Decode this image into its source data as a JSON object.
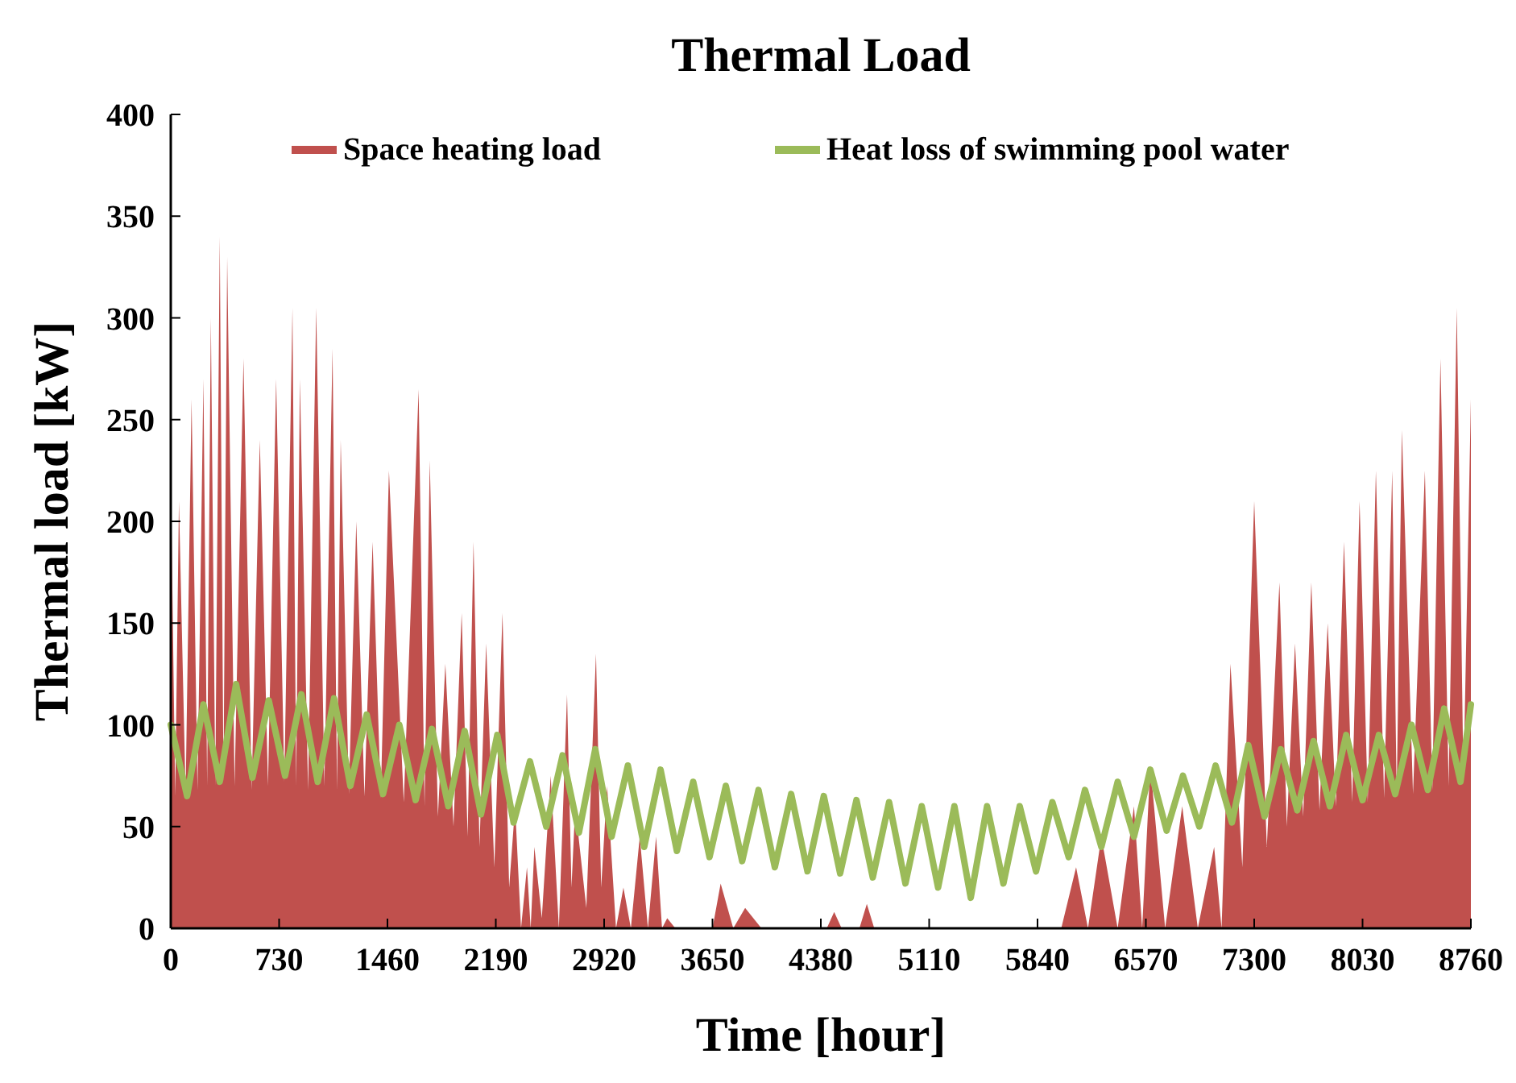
{
  "chart_data": {
    "type": "line",
    "title": "Thermal Load",
    "xlabel": "Time [hour]",
    "ylabel": "Thermal load [kW]",
    "xlim": [
      0,
      8760
    ],
    "xticks": [
      0,
      730,
      1460,
      2190,
      2920,
      3650,
      4380,
      5110,
      5840,
      6570,
      7300,
      8030,
      8760
    ],
    "ylim": [
      0,
      400
    ],
    "yticks": [
      0,
      50,
      100,
      150,
      200,
      250,
      300,
      350,
      400
    ],
    "grid": false,
    "legend": "top",
    "marker": "none",
    "line_style": "solid",
    "series": [
      {
        "name": "Space heating load",
        "type": "area",
        "color": "#c0504d",
        "x": [
          0,
          30,
          55,
          100,
          140,
          180,
          220,
          245,
          270,
          300,
          330,
          355,
          380,
          430,
          490,
          545,
          600,
          655,
          710,
          765,
          820,
          845,
          870,
          925,
          980,
          1035,
          1090,
          1120,
          1145,
          1200,
          1250,
          1305,
          1360,
          1415,
          1470,
          1570,
          1670,
          1710,
          1745,
          1800,
          1850,
          1905,
          1960,
          2000,
          2040,
          2080,
          2125,
          2180,
          2235,
          2280,
          2320,
          2360,
          2400,
          2425,
          2450,
          2500,
          2560,
          2615,
          2670,
          2700,
          2725,
          2800,
          2865,
          2900,
          2940,
          3000,
          3050,
          3100,
          3160,
          3215,
          3270,
          3310,
          3345,
          3400,
          3650,
          3705,
          3790,
          3870,
          3980,
          4420,
          4470,
          4520,
          4640,
          4690,
          4740,
          6000,
          6100,
          6180,
          6270,
          6380,
          6490,
          6545,
          6600,
          6700,
          6815,
          6920,
          7030,
          7080,
          7140,
          7220,
          7300,
          7385,
          7470,
          7520,
          7575,
          7630,
          7685,
          7740,
          7795,
          7850,
          7905,
          7960,
          8010,
          8065,
          8120,
          8175,
          8230,
          8260,
          8295,
          8370,
          8450,
          8500,
          8555,
          8610,
          8665,
          8710,
          8760
        ],
        "values": [
          225,
          65,
          210,
          66,
          260,
          68,
          270,
          70,
          300,
          70,
          340,
          72,
          330,
          70,
          280,
          68,
          240,
          70,
          270,
          72,
          305,
          70,
          270,
          68,
          305,
          70,
          285,
          68,
          240,
          66,
          200,
          65,
          190,
          64,
          225,
          62,
          265,
          60,
          230,
          55,
          130,
          50,
          155,
          45,
          190,
          40,
          140,
          30,
          155,
          20,
          60,
          0,
          30,
          0,
          40,
          5,
          75,
          0,
          115,
          20,
          60,
          10,
          135,
          20,
          70,
          0,
          20,
          0,
          45,
          0,
          45,
          0,
          5,
          0,
          0,
          22,
          0,
          10,
          0,
          0,
          8,
          0,
          0,
          12,
          0,
          0,
          30,
          0,
          45,
          0,
          60,
          0,
          80,
          0,
          60,
          0,
          40,
          0,
          130,
          30,
          210,
          40,
          170,
          50,
          140,
          55,
          170,
          58,
          150,
          60,
          190,
          62,
          210,
          62,
          225,
          64,
          225,
          65,
          245,
          66,
          225,
          68,
          280,
          70,
          305,
          72,
          260
        ]
      },
      {
        "name": "Heat loss of swimming pool water",
        "color": "#9bbb59",
        "x": [
          0,
          110,
          220,
          330,
          440,
          550,
          660,
          770,
          880,
          990,
          1100,
          1210,
          1320,
          1430,
          1540,
          1650,
          1760,
          1870,
          1980,
          2090,
          2200,
          2310,
          2420,
          2530,
          2640,
          2750,
          2860,
          2970,
          3080,
          3190,
          3300,
          3410,
          3520,
          3630,
          3740,
          3850,
          3960,
          4070,
          4180,
          4290,
          4400,
          4510,
          4620,
          4730,
          4840,
          4950,
          5060,
          5170,
          5280,
          5390,
          5500,
          5610,
          5720,
          5830,
          5940,
          6050,
          6160,
          6270,
          6380,
          6490,
          6600,
          6710,
          6820,
          6930,
          7040,
          7150,
          7260,
          7370,
          7480,
          7590,
          7700,
          7810,
          7920,
          8030,
          8140,
          8250,
          8360,
          8470,
          8580,
          8690,
          8760
        ],
        "values": [
          100,
          65,
          110,
          72,
          120,
          74,
          112,
          75,
          115,
          72,
          113,
          70,
          105,
          66,
          100,
          63,
          98,
          60,
          97,
          56,
          95,
          52,
          82,
          50,
          85,
          47,
          88,
          45,
          80,
          40,
          78,
          38,
          72,
          35,
          70,
          33,
          68,
          30,
          66,
          28,
          65,
          27,
          63,
          25,
          62,
          22,
          60,
          20,
          60,
          15,
          60,
          22,
          60,
          28,
          62,
          35,
          68,
          40,
          72,
          45,
          78,
          48,
          75,
          50,
          80,
          52,
          90,
          55,
          88,
          58,
          92,
          60,
          95,
          63,
          95,
          66,
          100,
          68,
          108,
          72,
          110
        ]
      }
    ]
  }
}
